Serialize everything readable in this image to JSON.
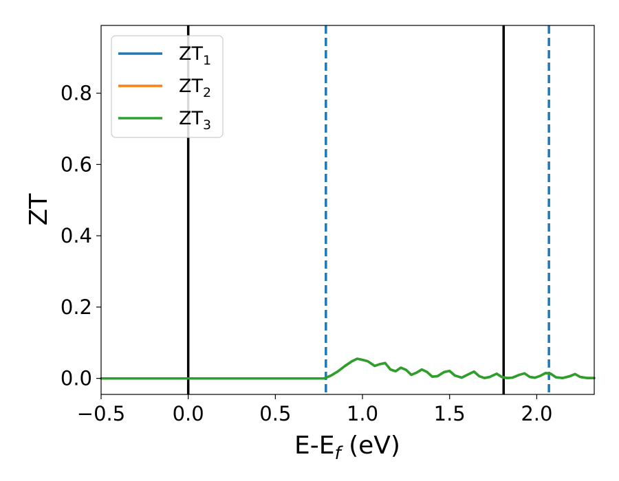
{
  "chart_data": {
    "type": "line",
    "title": "",
    "xlabel": "E-E",
    "xlabel_sub": "f",
    "xlabel_unit": " (eV)",
    "ylabel": "ZT",
    "xlim": [
      -0.5,
      2.33
    ],
    "ylim": [
      -0.045,
      0.99
    ],
    "xticks": [
      -0.5,
      0.0,
      0.5,
      1.0,
      1.5,
      2.0
    ],
    "xtick_labels": [
      "−0.5",
      "0.0",
      "0.5",
      "1.0",
      "1.5",
      "2.0"
    ],
    "yticks": [
      0.0,
      0.2,
      0.4,
      0.6,
      0.8
    ],
    "ytick_labels": [
      "0.0",
      "0.2",
      "0.4",
      "0.6",
      "0.8"
    ],
    "grid": false,
    "legend_position": "top-left",
    "series": [
      {
        "name": "ZT",
        "sub": "1",
        "color": "#1f77b4"
      },
      {
        "name": "ZT",
        "sub": "2",
        "color": "#ff7f0e"
      },
      {
        "name": "ZT",
        "sub": "3",
        "color": "#2ca02c"
      }
    ],
    "curve": {
      "x": [
        -0.5,
        0.0,
        0.5,
        0.78,
        0.82,
        0.86,
        0.9,
        0.94,
        0.97,
        1.0,
        1.03,
        1.07,
        1.1,
        1.13,
        1.16,
        1.19,
        1.22,
        1.25,
        1.28,
        1.31,
        1.34,
        1.37,
        1.4,
        1.43,
        1.47,
        1.5,
        1.53,
        1.57,
        1.61,
        1.64,
        1.67,
        1.7,
        1.73,
        1.77,
        1.8,
        1.83,
        1.86,
        1.9,
        1.93,
        1.96,
        1.99,
        2.02,
        2.05,
        2.08,
        2.11,
        2.15,
        2.19,
        2.22,
        2.25,
        2.29,
        2.33
      ],
      "y": [
        0.0,
        0.0,
        0.0,
        0.0,
        0.008,
        0.02,
        0.035,
        0.048,
        0.055,
        0.052,
        0.048,
        0.035,
        0.04,
        0.043,
        0.025,
        0.02,
        0.03,
        0.024,
        0.01,
        0.016,
        0.025,
        0.018,
        0.005,
        0.006,
        0.018,
        0.021,
        0.008,
        0.002,
        0.012,
        0.019,
        0.006,
        0.001,
        0.004,
        0.013,
        0.004,
        0.001,
        0.002,
        0.01,
        0.014,
        0.004,
        0.002,
        0.007,
        0.015,
        0.013,
        0.003,
        0.001,
        0.006,
        0.012,
        0.004,
        0.001,
        0.001
      ]
    },
    "vlines": [
      {
        "x": 0.0,
        "style": "solid",
        "color": "#000000"
      },
      {
        "x": 0.79,
        "style": "dashed",
        "color": "#1f77b4"
      },
      {
        "x": 1.81,
        "style": "solid",
        "color": "#000000"
      },
      {
        "x": 2.07,
        "style": "dashed",
        "color": "#1f77b4"
      }
    ]
  }
}
